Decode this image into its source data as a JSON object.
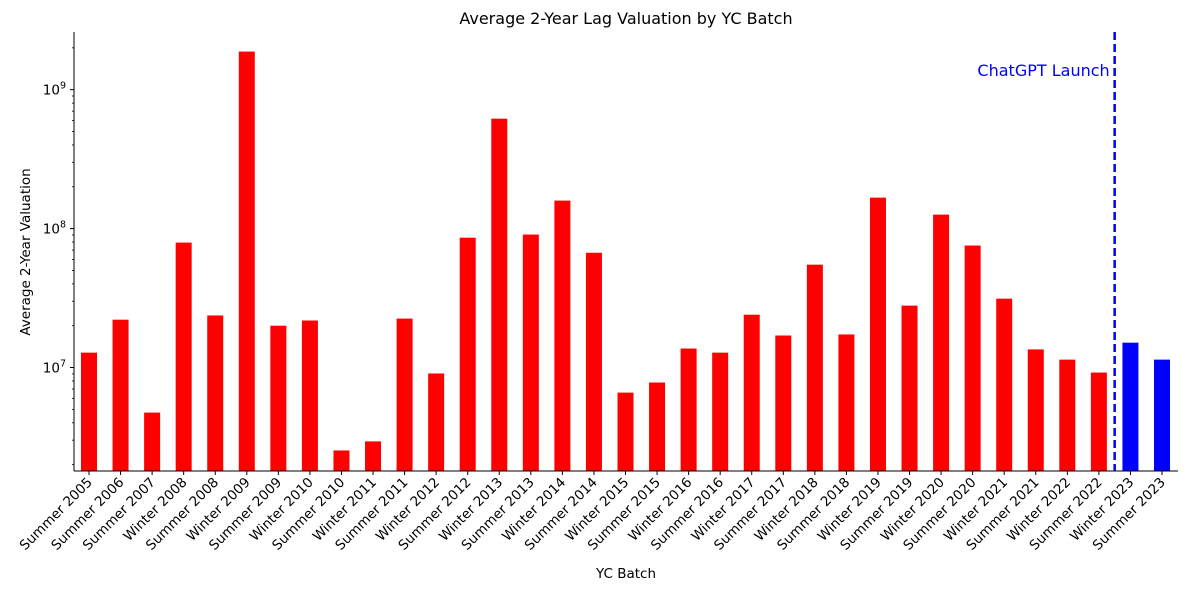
{
  "chart_data": {
    "type": "bar",
    "title": "Average 2-Year Lag Valuation by YC Batch",
    "xlabel": "YC Batch",
    "ylabel": "Average 2-Year Valuation",
    "yscale": "log",
    "ylim": [
      1800000.0,
      2600000000.0
    ],
    "yticks": [
      {
        "value": 10000000.0,
        "base": "10",
        "exp": "7"
      },
      {
        "value": 100000000.0,
        "base": "10",
        "exp": "8"
      },
      {
        "value": 1000000000.0,
        "base": "10",
        "exp": "9"
      }
    ],
    "grid": false,
    "categories": [
      "Summer 2005",
      "Summer 2006",
      "Summer 2007",
      "Winter 2008",
      "Summer 2008",
      "Winter 2009",
      "Summer 2009",
      "Winter 2010",
      "Summer 2010",
      "Winter 2011",
      "Summer 2011",
      "Winter 2012",
      "Summer 2012",
      "Winter 2013",
      "Summer 2013",
      "Winter 2014",
      "Summer 2014",
      "Winter 2015",
      "Summer 2015",
      "Winter 2016",
      "Summer 2016",
      "Winter 2017",
      "Summer 2017",
      "Winter 2018",
      "Summer 2018",
      "Winter 2019",
      "Summer 2019",
      "Winter 2020",
      "Summer 2020",
      "Winter 2021",
      "Summer 2021",
      "Winter 2022",
      "Summer 2022",
      "Winter 2023",
      "Summer 2023"
    ],
    "values": [
      12800000,
      22100000,
      4740000,
      79300000,
      23700000,
      1880000000,
      20000000,
      21800000,
      2530000,
      2940000,
      22500000,
      9060000,
      86000000,
      618000000,
      90600000,
      159000000,
      67000000,
      6600000,
      7800000,
      13700000,
      12800000,
      24000000,
      17000000,
      55000000,
      17300000,
      167000000,
      27900000,
      126000000,
      75500000,
      31300000,
      13500000,
      11400000,
      9200000,
      15100000,
      11400000
    ],
    "colors": {
      "pre_launch": "#ff0000",
      "post_launch": "#0000ff",
      "annotation": "#0000ff"
    },
    "post_launch_from": "Winter 2023",
    "annotation": {
      "label": "ChatGPT Launch",
      "between": [
        "Summer 2022",
        "Winter 2023"
      ],
      "style": "dashed vertical line"
    }
  }
}
